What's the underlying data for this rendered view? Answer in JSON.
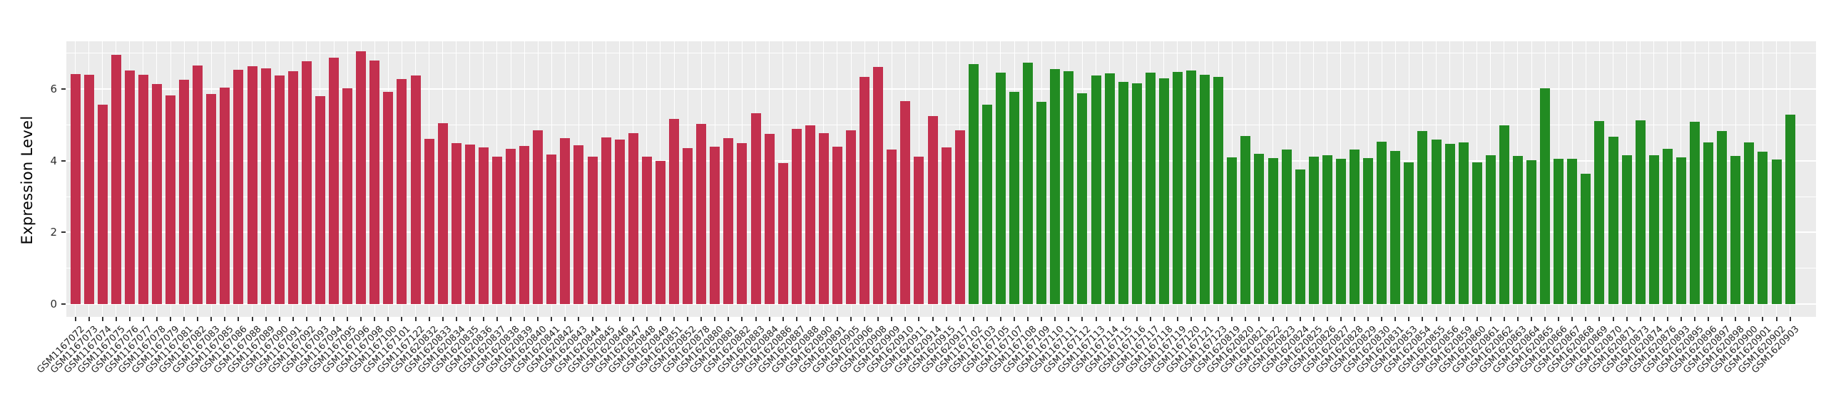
{
  "figure": {
    "kind": "bar-chart-screenshot"
  },
  "y_axis": {
    "title": "Expression Level",
    "tick_labels": [
      "0",
      "2",
      "4",
      "6"
    ]
  },
  "x_axis": {
    "tick_label_angle_deg": -45
  },
  "chart_data": {
    "type": "bar",
    "title": "",
    "xlabel": "",
    "ylabel": "Expression Level",
    "ylim": [
      0,
      7.33
    ],
    "yticks": [
      0,
      2,
      4,
      6
    ],
    "yticks_minor": [
      1,
      3,
      5,
      7
    ],
    "legend_position": "none",
    "grid": "on",
    "panel_bg": "#EBEBEB",
    "grid_color": "#FFFFFF",
    "group_colors": {
      "red": "#C3304E",
      "green": "#228B22"
    },
    "bars": [
      {
        "label": "GSM1167072",
        "value": 6.41,
        "group": "red"
      },
      {
        "label": "GSM1167073",
        "value": 6.39,
        "group": "red"
      },
      {
        "label": "GSM1167074",
        "value": 5.57,
        "group": "red"
      },
      {
        "label": "GSM1167075",
        "value": 6.96,
        "group": "red"
      },
      {
        "label": "GSM1167076",
        "value": 6.52,
        "group": "red"
      },
      {
        "label": "GSM1167077",
        "value": 6.4,
        "group": "red"
      },
      {
        "label": "GSM1167078",
        "value": 6.13,
        "group": "red"
      },
      {
        "label": "GSM1167079",
        "value": 5.82,
        "group": "red"
      },
      {
        "label": "GSM1167081",
        "value": 6.25,
        "group": "red"
      },
      {
        "label": "GSM1167082",
        "value": 6.66,
        "group": "red"
      },
      {
        "label": "GSM1167083",
        "value": 5.87,
        "group": "red"
      },
      {
        "label": "GSM1167085",
        "value": 6.04,
        "group": "red"
      },
      {
        "label": "GSM1167086",
        "value": 6.53,
        "group": "red"
      },
      {
        "label": "GSM1167088",
        "value": 6.63,
        "group": "red"
      },
      {
        "label": "GSM1167089",
        "value": 6.58,
        "group": "red"
      },
      {
        "label": "GSM1167090",
        "value": 6.37,
        "group": "red"
      },
      {
        "label": "GSM1167091",
        "value": 6.49,
        "group": "red"
      },
      {
        "label": "GSM1167092",
        "value": 6.77,
        "group": "red"
      },
      {
        "label": "GSM1167093",
        "value": 5.8,
        "group": "red"
      },
      {
        "label": "GSM1167094",
        "value": 6.88,
        "group": "red"
      },
      {
        "label": "GSM1167095",
        "value": 6.02,
        "group": "red"
      },
      {
        "label": "GSM1167096",
        "value": 7.06,
        "group": "red"
      },
      {
        "label": "GSM1167098",
        "value": 6.8,
        "group": "red"
      },
      {
        "label": "GSM1167100",
        "value": 5.93,
        "group": "red"
      },
      {
        "label": "GSM1167101",
        "value": 6.28,
        "group": "red"
      },
      {
        "label": "GSM1167122",
        "value": 6.37,
        "group": "red"
      },
      {
        "label": "GSM1620832",
        "value": 4.6,
        "group": "red"
      },
      {
        "label": "GSM1620833",
        "value": 5.05,
        "group": "red"
      },
      {
        "label": "GSM1620834",
        "value": 4.5,
        "group": "red"
      },
      {
        "label": "GSM1620835",
        "value": 4.46,
        "group": "red"
      },
      {
        "label": "GSM1620836",
        "value": 4.38,
        "group": "red"
      },
      {
        "label": "GSM1620837",
        "value": 4.12,
        "group": "red"
      },
      {
        "label": "GSM1620838",
        "value": 4.33,
        "group": "red"
      },
      {
        "label": "GSM1620839",
        "value": 4.41,
        "group": "red"
      },
      {
        "label": "GSM1620840",
        "value": 4.84,
        "group": "red"
      },
      {
        "label": "GSM1620841",
        "value": 4.17,
        "group": "red"
      },
      {
        "label": "GSM1620842",
        "value": 4.62,
        "group": "red"
      },
      {
        "label": "GSM1620843",
        "value": 4.44,
        "group": "red"
      },
      {
        "label": "GSM1620844",
        "value": 4.11,
        "group": "red"
      },
      {
        "label": "GSM1620845",
        "value": 4.64,
        "group": "red"
      },
      {
        "label": "GSM1620846",
        "value": 4.59,
        "group": "red"
      },
      {
        "label": "GSM1620847",
        "value": 4.76,
        "group": "red"
      },
      {
        "label": "GSM1620848",
        "value": 4.12,
        "group": "red"
      },
      {
        "label": "GSM1620849",
        "value": 3.99,
        "group": "red"
      },
      {
        "label": "GSM1620851",
        "value": 5.17,
        "group": "red"
      },
      {
        "label": "GSM1620852",
        "value": 4.36,
        "group": "red"
      },
      {
        "label": "GSM1620878",
        "value": 5.03,
        "group": "red"
      },
      {
        "label": "GSM1620880",
        "value": 4.4,
        "group": "red"
      },
      {
        "label": "GSM1620881",
        "value": 4.62,
        "group": "red"
      },
      {
        "label": "GSM1620882",
        "value": 4.5,
        "group": "red"
      },
      {
        "label": "GSM1620883",
        "value": 5.32,
        "group": "red"
      },
      {
        "label": "GSM1620884",
        "value": 4.74,
        "group": "red"
      },
      {
        "label": "GSM1620886",
        "value": 3.94,
        "group": "red"
      },
      {
        "label": "GSM1620887",
        "value": 4.88,
        "group": "red"
      },
      {
        "label": "GSM1620888",
        "value": 4.98,
        "group": "red"
      },
      {
        "label": "GSM1620890",
        "value": 4.76,
        "group": "red"
      },
      {
        "label": "GSM1620891",
        "value": 4.4,
        "group": "red"
      },
      {
        "label": "GSM1620905",
        "value": 4.84,
        "group": "red"
      },
      {
        "label": "GSM1620906",
        "value": 6.34,
        "group": "red"
      },
      {
        "label": "GSM1620908",
        "value": 6.61,
        "group": "red"
      },
      {
        "label": "GSM1620909",
        "value": 4.31,
        "group": "red"
      },
      {
        "label": "GSM1620910",
        "value": 5.67,
        "group": "red"
      },
      {
        "label": "GSM1620911",
        "value": 4.12,
        "group": "red"
      },
      {
        "label": "GSM1620914",
        "value": 5.24,
        "group": "red"
      },
      {
        "label": "GSM1620915",
        "value": 4.37,
        "group": "red"
      },
      {
        "label": "GSM1620917",
        "value": 4.85,
        "group": "red"
      },
      {
        "label": "GSM1167102",
        "value": 6.7,
        "group": "green"
      },
      {
        "label": "GSM1167103",
        "value": 5.56,
        "group": "green"
      },
      {
        "label": "GSM1167105",
        "value": 6.45,
        "group": "green"
      },
      {
        "label": "GSM1167107",
        "value": 5.93,
        "group": "green"
      },
      {
        "label": "GSM1167108",
        "value": 6.74,
        "group": "green"
      },
      {
        "label": "GSM1167109",
        "value": 5.64,
        "group": "green"
      },
      {
        "label": "GSM1167110",
        "value": 6.56,
        "group": "green"
      },
      {
        "label": "GSM1167111",
        "value": 6.5,
        "group": "green"
      },
      {
        "label": "GSM1167112",
        "value": 5.88,
        "group": "green"
      },
      {
        "label": "GSM1167113",
        "value": 6.37,
        "group": "green"
      },
      {
        "label": "GSM1167114",
        "value": 6.44,
        "group": "green"
      },
      {
        "label": "GSM1167115",
        "value": 6.2,
        "group": "green"
      },
      {
        "label": "GSM1167116",
        "value": 6.16,
        "group": "green"
      },
      {
        "label": "GSM1167117",
        "value": 6.46,
        "group": "green"
      },
      {
        "label": "GSM1167118",
        "value": 6.3,
        "group": "green"
      },
      {
        "label": "GSM1167119",
        "value": 6.48,
        "group": "green"
      },
      {
        "label": "GSM1167120",
        "value": 6.51,
        "group": "green"
      },
      {
        "label": "GSM1167121",
        "value": 6.39,
        "group": "green"
      },
      {
        "label": "GSM1167123",
        "value": 6.33,
        "group": "green"
      },
      {
        "label": "GSM1620819",
        "value": 4.1,
        "group": "green"
      },
      {
        "label": "GSM1620820",
        "value": 4.68,
        "group": "green"
      },
      {
        "label": "GSM1620821",
        "value": 4.2,
        "group": "green"
      },
      {
        "label": "GSM1620822",
        "value": 4.08,
        "group": "green"
      },
      {
        "label": "GSM1620823",
        "value": 4.31,
        "group": "green"
      },
      {
        "label": "GSM1620824",
        "value": 3.75,
        "group": "green"
      },
      {
        "label": "GSM1620825",
        "value": 4.11,
        "group": "green"
      },
      {
        "label": "GSM1620826",
        "value": 4.16,
        "group": "green"
      },
      {
        "label": "GSM1620827",
        "value": 4.05,
        "group": "green"
      },
      {
        "label": "GSM1620828",
        "value": 4.31,
        "group": "green"
      },
      {
        "label": "GSM1620829",
        "value": 4.08,
        "group": "green"
      },
      {
        "label": "GSM1620830",
        "value": 4.53,
        "group": "green"
      },
      {
        "label": "GSM1620831",
        "value": 4.28,
        "group": "green"
      },
      {
        "label": "GSM1620853",
        "value": 3.95,
        "group": "green"
      },
      {
        "label": "GSM1620854",
        "value": 4.82,
        "group": "green"
      },
      {
        "label": "GSM1620855",
        "value": 4.58,
        "group": "green"
      },
      {
        "label": "GSM1620856",
        "value": 4.48,
        "group": "green"
      },
      {
        "label": "GSM1620859",
        "value": 4.52,
        "group": "green"
      },
      {
        "label": "GSM1620860",
        "value": 3.95,
        "group": "green"
      },
      {
        "label": "GSM1620861",
        "value": 4.15,
        "group": "green"
      },
      {
        "label": "GSM1620862",
        "value": 4.98,
        "group": "green"
      },
      {
        "label": "GSM1620863",
        "value": 4.14,
        "group": "green"
      },
      {
        "label": "GSM1620864",
        "value": 4.01,
        "group": "green"
      },
      {
        "label": "GSM1620865",
        "value": 6.02,
        "group": "green"
      },
      {
        "label": "GSM1620866",
        "value": 4.06,
        "group": "green"
      },
      {
        "label": "GSM1620867",
        "value": 4.06,
        "group": "green"
      },
      {
        "label": "GSM1620868",
        "value": 3.64,
        "group": "green"
      },
      {
        "label": "GSM1620869",
        "value": 5.1,
        "group": "green"
      },
      {
        "label": "GSM1620870",
        "value": 4.66,
        "group": "green"
      },
      {
        "label": "GSM1620871",
        "value": 4.16,
        "group": "green"
      },
      {
        "label": "GSM1620873",
        "value": 5.12,
        "group": "green"
      },
      {
        "label": "GSM1620874",
        "value": 4.16,
        "group": "green"
      },
      {
        "label": "GSM1620876",
        "value": 4.34,
        "group": "green"
      },
      {
        "label": "GSM1620893",
        "value": 4.1,
        "group": "green"
      },
      {
        "label": "GSM1620895",
        "value": 5.09,
        "group": "green"
      },
      {
        "label": "GSM1620896",
        "value": 4.51,
        "group": "green"
      },
      {
        "label": "GSM1620897",
        "value": 4.83,
        "group": "green"
      },
      {
        "label": "GSM1620898",
        "value": 4.14,
        "group": "green"
      },
      {
        "label": "GSM1620900",
        "value": 4.52,
        "group": "green"
      },
      {
        "label": "GSM1620901",
        "value": 4.25,
        "group": "green"
      },
      {
        "label": "GSM1620902",
        "value": 4.04,
        "group": "green"
      },
      {
        "label": "GSM1620903",
        "value": 5.28,
        "group": "green"
      }
    ]
  }
}
